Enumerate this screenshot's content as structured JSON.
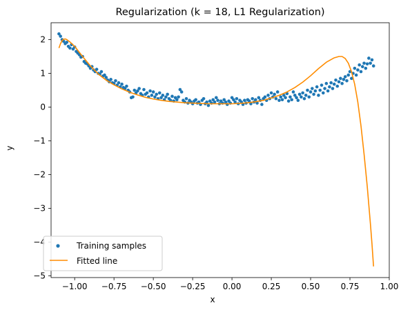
{
  "chart_data": {
    "type": "scatter",
    "title": "Regularization (k = 18, L1 Regularization)",
    "xlabel": "x",
    "ylabel": "y",
    "xlim": [
      -1.15,
      1.0
    ],
    "ylim": [
      -5.05,
      2.5
    ],
    "xticks": [
      -1.0,
      -0.75,
      -0.5,
      -0.25,
      0.0,
      0.25,
      0.5,
      0.75,
      1.0
    ],
    "xtick_labels": [
      "−1.00",
      "−0.75",
      "−0.50",
      "−0.25",
      "0.00",
      "0.25",
      "0.50",
      "0.75",
      "1.00"
    ],
    "yticks": [
      2,
      1,
      0,
      -1,
      -2,
      -3,
      -4,
      -5
    ],
    "ytick_labels": [
      "2",
      "1",
      "0",
      "−1",
      "−2",
      "−3",
      "−4",
      "−5"
    ],
    "grid": false,
    "legend_position": "lower-left",
    "series": [
      {
        "name": "Training samples",
        "kind": "scatter",
        "color": "#1f77b4",
        "points": [
          [
            -1.1,
            2.17
          ],
          [
            -1.09,
            2.1
          ],
          [
            -1.08,
            2.0
          ],
          [
            -1.07,
            1.95
          ],
          [
            -1.06,
            1.88
          ],
          [
            -1.05,
            1.92
          ],
          [
            -1.04,
            1.8
          ],
          [
            -1.03,
            1.75
          ],
          [
            -1.02,
            1.85
          ],
          [
            -1.01,
            1.72
          ],
          [
            -1.0,
            1.78
          ],
          [
            -0.99,
            1.65
          ],
          [
            -0.98,
            1.6
          ],
          [
            -0.97,
            1.55
          ],
          [
            -0.96,
            1.48
          ],
          [
            -0.95,
            1.5
          ],
          [
            -0.94,
            1.35
          ],
          [
            -0.93,
            1.3
          ],
          [
            -0.92,
            1.28
          ],
          [
            -0.91,
            1.22
          ],
          [
            -0.9,
            1.15
          ],
          [
            -0.89,
            1.2
          ],
          [
            -0.88,
            1.1
          ],
          [
            -0.87,
            1.05
          ],
          [
            -0.86,
            1.12
          ],
          [
            -0.85,
            1.0
          ],
          [
            -0.84,
            0.98
          ],
          [
            -0.83,
            1.05
          ],
          [
            -0.82,
            0.92
          ],
          [
            -0.81,
            0.95
          ],
          [
            -0.8,
            0.88
          ],
          [
            -0.79,
            0.8
          ],
          [
            -0.78,
            0.75
          ],
          [
            -0.77,
            0.82
          ],
          [
            -0.76,
            0.72
          ],
          [
            -0.75,
            0.7
          ],
          [
            -0.74,
            0.78
          ],
          [
            -0.73,
            0.65
          ],
          [
            -0.72,
            0.72
          ],
          [
            -0.71,
            0.6
          ],
          [
            -0.7,
            0.68
          ],
          [
            -0.69,
            0.58
          ],
          [
            -0.68,
            0.55
          ],
          [
            -0.67,
            0.62
          ],
          [
            -0.66,
            0.5
          ],
          [
            -0.65,
            0.45
          ],
          [
            -0.64,
            0.28
          ],
          [
            -0.63,
            0.3
          ],
          [
            -0.62,
            0.5
          ],
          [
            -0.61,
            0.42
          ],
          [
            -0.6,
            0.48
          ],
          [
            -0.59,
            0.55
          ],
          [
            -0.58,
            0.4
          ],
          [
            -0.57,
            0.35
          ],
          [
            -0.56,
            0.52
          ],
          [
            -0.55,
            0.38
          ],
          [
            -0.54,
            0.42
          ],
          [
            -0.53,
            0.3
          ],
          [
            -0.52,
            0.48
          ],
          [
            -0.51,
            0.35
          ],
          [
            -0.5,
            0.45
          ],
          [
            -0.49,
            0.3
          ],
          [
            -0.48,
            0.38
          ],
          [
            -0.47,
            0.25
          ],
          [
            -0.46,
            0.42
          ],
          [
            -0.45,
            0.28
          ],
          [
            -0.44,
            0.35
          ],
          [
            -0.43,
            0.22
          ],
          [
            -0.42,
            0.3
          ],
          [
            -0.41,
            0.38
          ],
          [
            -0.4,
            0.25
          ],
          [
            -0.39,
            0.2
          ],
          [
            -0.38,
            0.32
          ],
          [
            -0.37,
            0.18
          ],
          [
            -0.36,
            0.28
          ],
          [
            -0.35,
            0.22
          ],
          [
            -0.34,
            0.3
          ],
          [
            -0.33,
            0.52
          ],
          [
            -0.32,
            0.45
          ],
          [
            -0.31,
            0.2
          ],
          [
            -0.3,
            0.15
          ],
          [
            -0.29,
            0.25
          ],
          [
            -0.28,
            0.12
          ],
          [
            -0.27,
            0.2
          ],
          [
            -0.26,
            0.15
          ],
          [
            -0.25,
            0.1
          ],
          [
            -0.24,
            0.18
          ],
          [
            -0.23,
            0.22
          ],
          [
            -0.22,
            0.12
          ],
          [
            -0.21,
            0.15
          ],
          [
            -0.2,
            0.08
          ],
          [
            -0.19,
            0.2
          ],
          [
            -0.18,
            0.25
          ],
          [
            -0.17,
            0.1
          ],
          [
            -0.16,
            0.15
          ],
          [
            -0.15,
            0.05
          ],
          [
            -0.14,
            0.18
          ],
          [
            -0.13,
            0.12
          ],
          [
            -0.12,
            0.22
          ],
          [
            -0.11,
            0.15
          ],
          [
            -0.1,
            0.28
          ],
          [
            -0.09,
            0.2
          ],
          [
            -0.08,
            0.1
          ],
          [
            -0.07,
            0.18
          ],
          [
            -0.06,
            0.12
          ],
          [
            -0.05,
            0.22
          ],
          [
            -0.04,
            0.15
          ],
          [
            -0.03,
            0.08
          ],
          [
            -0.02,
            0.18
          ],
          [
            -0.01,
            0.12
          ],
          [
            0.0,
            0.28
          ],
          [
            0.01,
            0.22
          ],
          [
            0.02,
            0.15
          ],
          [
            0.03,
            0.25
          ],
          [
            0.04,
            0.1
          ],
          [
            0.05,
            0.2
          ],
          [
            0.06,
            0.15
          ],
          [
            0.07,
            0.08
          ],
          [
            0.08,
            0.2
          ],
          [
            0.09,
            0.12
          ],
          [
            0.1,
            0.22
          ],
          [
            0.11,
            0.18
          ],
          [
            0.12,
            0.1
          ],
          [
            0.13,
            0.25
          ],
          [
            0.14,
            0.15
          ],
          [
            0.15,
            0.22
          ],
          [
            0.16,
            0.12
          ],
          [
            0.17,
            0.28
          ],
          [
            0.18,
            0.2
          ],
          [
            0.19,
            0.08
          ],
          [
            0.2,
            0.25
          ],
          [
            0.21,
            0.3
          ],
          [
            0.22,
            0.2
          ],
          [
            0.23,
            0.35
          ],
          [
            0.24,
            0.25
          ],
          [
            0.25,
            0.42
          ],
          [
            0.26,
            0.3
          ],
          [
            0.27,
            0.38
          ],
          [
            0.28,
            0.25
          ],
          [
            0.29,
            0.45
          ],
          [
            0.3,
            0.2
          ],
          [
            0.31,
            0.3
          ],
          [
            0.32,
            0.22
          ],
          [
            0.33,
            0.35
          ],
          [
            0.34,
            0.28
          ],
          [
            0.35,
            0.4
          ],
          [
            0.36,
            0.18
          ],
          [
            0.37,
            0.3
          ],
          [
            0.38,
            0.22
          ],
          [
            0.39,
            0.45
          ],
          [
            0.4,
            0.35
          ],
          [
            0.41,
            0.28
          ],
          [
            0.42,
            0.2
          ],
          [
            0.43,
            0.38
          ],
          [
            0.44,
            0.3
          ],
          [
            0.45,
            0.42
          ],
          [
            0.46,
            0.25
          ],
          [
            0.47,
            0.35
          ],
          [
            0.48,
            0.5
          ],
          [
            0.49,
            0.3
          ],
          [
            0.5,
            0.45
          ],
          [
            0.51,
            0.55
          ],
          [
            0.52,
            0.38
          ],
          [
            0.53,
            0.48
          ],
          [
            0.54,
            0.6
          ],
          [
            0.55,
            0.35
          ],
          [
            0.56,
            0.5
          ],
          [
            0.57,
            0.65
          ],
          [
            0.58,
            0.42
          ],
          [
            0.59,
            0.55
          ],
          [
            0.6,
            0.7
          ],
          [
            0.61,
            0.48
          ],
          [
            0.62,
            0.6
          ],
          [
            0.63,
            0.72
          ],
          [
            0.64,
            0.55
          ],
          [
            0.65,
            0.68
          ],
          [
            0.66,
            0.8
          ],
          [
            0.67,
            0.62
          ],
          [
            0.68,
            0.75
          ],
          [
            0.69,
            0.85
          ],
          [
            0.7,
            0.7
          ],
          [
            0.71,
            0.82
          ],
          [
            0.72,
            0.9
          ],
          [
            0.73,
            0.78
          ],
          [
            0.74,
            0.95
          ],
          [
            0.75,
            1.05
          ],
          [
            0.76,
            0.85
          ],
          [
            0.77,
            1.0
          ],
          [
            0.78,
            1.15
          ],
          [
            0.79,
            0.95
          ],
          [
            0.8,
            1.1
          ],
          [
            0.81,
            1.25
          ],
          [
            0.82,
            1.05
          ],
          [
            0.83,
            1.2
          ],
          [
            0.84,
            1.3
          ],
          [
            0.85,
            1.15
          ],
          [
            0.86,
            1.28
          ],
          [
            0.87,
            1.45
          ],
          [
            0.88,
            1.3
          ],
          [
            0.89,
            1.4
          ],
          [
            0.9,
            1.22
          ]
        ]
      },
      {
        "name": "Fitted line",
        "kind": "line",
        "color": "#ff8c00",
        "points": [
          [
            -1.1,
            1.75
          ],
          [
            -1.09,
            1.88
          ],
          [
            -1.08,
            1.97
          ],
          [
            -1.07,
            2.01
          ],
          [
            -1.06,
            2.02
          ],
          [
            -1.05,
            2.0
          ],
          [
            -1.03,
            1.93
          ],
          [
            -1.0,
            1.8
          ],
          [
            -0.95,
            1.5
          ],
          [
            -0.9,
            1.22
          ],
          [
            -0.85,
            0.98
          ],
          [
            -0.8,
            0.8
          ],
          [
            -0.75,
            0.66
          ],
          [
            -0.7,
            0.54
          ],
          [
            -0.65,
            0.44
          ],
          [
            -0.6,
            0.36
          ],
          [
            -0.55,
            0.29
          ],
          [
            -0.5,
            0.24
          ],
          [
            -0.45,
            0.2
          ],
          [
            -0.4,
            0.17
          ],
          [
            -0.35,
            0.15
          ],
          [
            -0.3,
            0.13
          ],
          [
            -0.25,
            0.12
          ],
          [
            -0.2,
            0.11
          ],
          [
            -0.15,
            0.1
          ],
          [
            -0.1,
            0.1
          ],
          [
            -0.05,
            0.1
          ],
          [
            0.0,
            0.1
          ],
          [
            0.05,
            0.11
          ],
          [
            0.1,
            0.13
          ],
          [
            0.15,
            0.16
          ],
          [
            0.2,
            0.2
          ],
          [
            0.25,
            0.27
          ],
          [
            0.3,
            0.35
          ],
          [
            0.35,
            0.45
          ],
          [
            0.4,
            0.58
          ],
          [
            0.45,
            0.74
          ],
          [
            0.5,
            0.93
          ],
          [
            0.55,
            1.14
          ],
          [
            0.6,
            1.33
          ],
          [
            0.65,
            1.46
          ],
          [
            0.68,
            1.5
          ],
          [
            0.7,
            1.5
          ],
          [
            0.72,
            1.44
          ],
          [
            0.74,
            1.3
          ],
          [
            0.76,
            1.05
          ],
          [
            0.78,
            0.68
          ],
          [
            0.8,
            0.15
          ],
          [
            0.82,
            -0.55
          ],
          [
            0.84,
            -1.4
          ],
          [
            0.86,
            -2.35
          ],
          [
            0.88,
            -3.45
          ],
          [
            0.89,
            -4.05
          ],
          [
            0.9,
            -4.72
          ]
        ]
      }
    ]
  }
}
